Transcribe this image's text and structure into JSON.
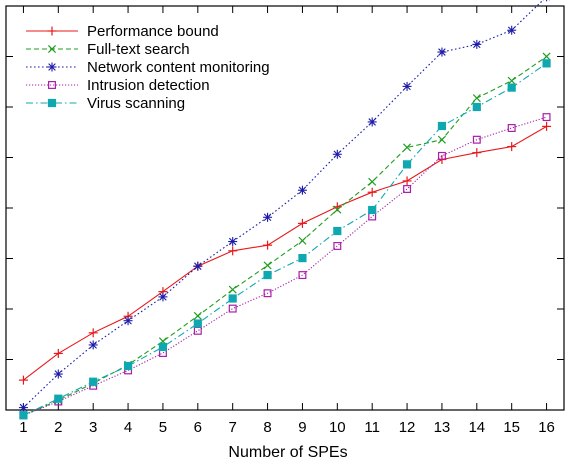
{
  "chart_data": {
    "type": "line",
    "title": "",
    "xlabel": "Number of SPEs",
    "ylabel": "",
    "x": [
      1,
      2,
      3,
      4,
      5,
      6,
      7,
      8,
      9,
      10,
      11,
      12,
      13,
      14,
      15,
      16
    ],
    "xlim": [
      0.5,
      16.5
    ],
    "ylim": [
      0,
      100
    ],
    "ytick_count": 8,
    "y_tick_labels_shown": false,
    "grid": false,
    "legend_position": "top-left",
    "series": [
      {
        "name": "Performance bound",
        "color": "#e8191b",
        "dash": "solid",
        "marker": "plus",
        "values": [
          7.4,
          14.0,
          19.1,
          23.2,
          29.3,
          35.6,
          39.4,
          40.8,
          46.2,
          50.3,
          53.9,
          56.7,
          62.0,
          63.7,
          65.2,
          70.2
        ]
      },
      {
        "name": "Full-text search",
        "color": "#1f9e1f",
        "dash": "dashed",
        "marker": "cross",
        "values": [
          -1.3,
          2.4,
          6.6,
          11.2,
          17.0,
          23.3,
          29.8,
          35.8,
          41.9,
          49.6,
          56.5,
          65.0,
          66.9,
          77.2,
          81.5,
          87.5
        ]
      },
      {
        "name": "Network content monitoring",
        "color": "#1c1ca8",
        "dash": "dotted",
        "marker": "star",
        "values": [
          0.6,
          8.9,
          16.1,
          22.1,
          28.0,
          35.6,
          41.7,
          47.7,
          54.4,
          63.3,
          71.3,
          80.1,
          88.6,
          90.5,
          94.0,
          102.3
        ]
      },
      {
        "name": "Intrusion detection",
        "color": "#a81fa8",
        "dash": "dotted-dense",
        "marker": "square-open",
        "values": [
          -1.3,
          2.1,
          6.0,
          9.8,
          14.1,
          19.6,
          25.1,
          28.9,
          33.4,
          40.6,
          47.9,
          54.7,
          62.9,
          66.9,
          69.8,
          72.5
        ]
      },
      {
        "name": "Virus scanning",
        "color": "#10a8b0",
        "dash": "dashdot",
        "marker": "square-filled",
        "values": [
          -1.3,
          2.8,
          7.0,
          10.9,
          15.6,
          21.4,
          27.6,
          33.4,
          37.6,
          44.3,
          49.5,
          60.8,
          70.3,
          75.0,
          79.8,
          85.8
        ]
      }
    ]
  }
}
